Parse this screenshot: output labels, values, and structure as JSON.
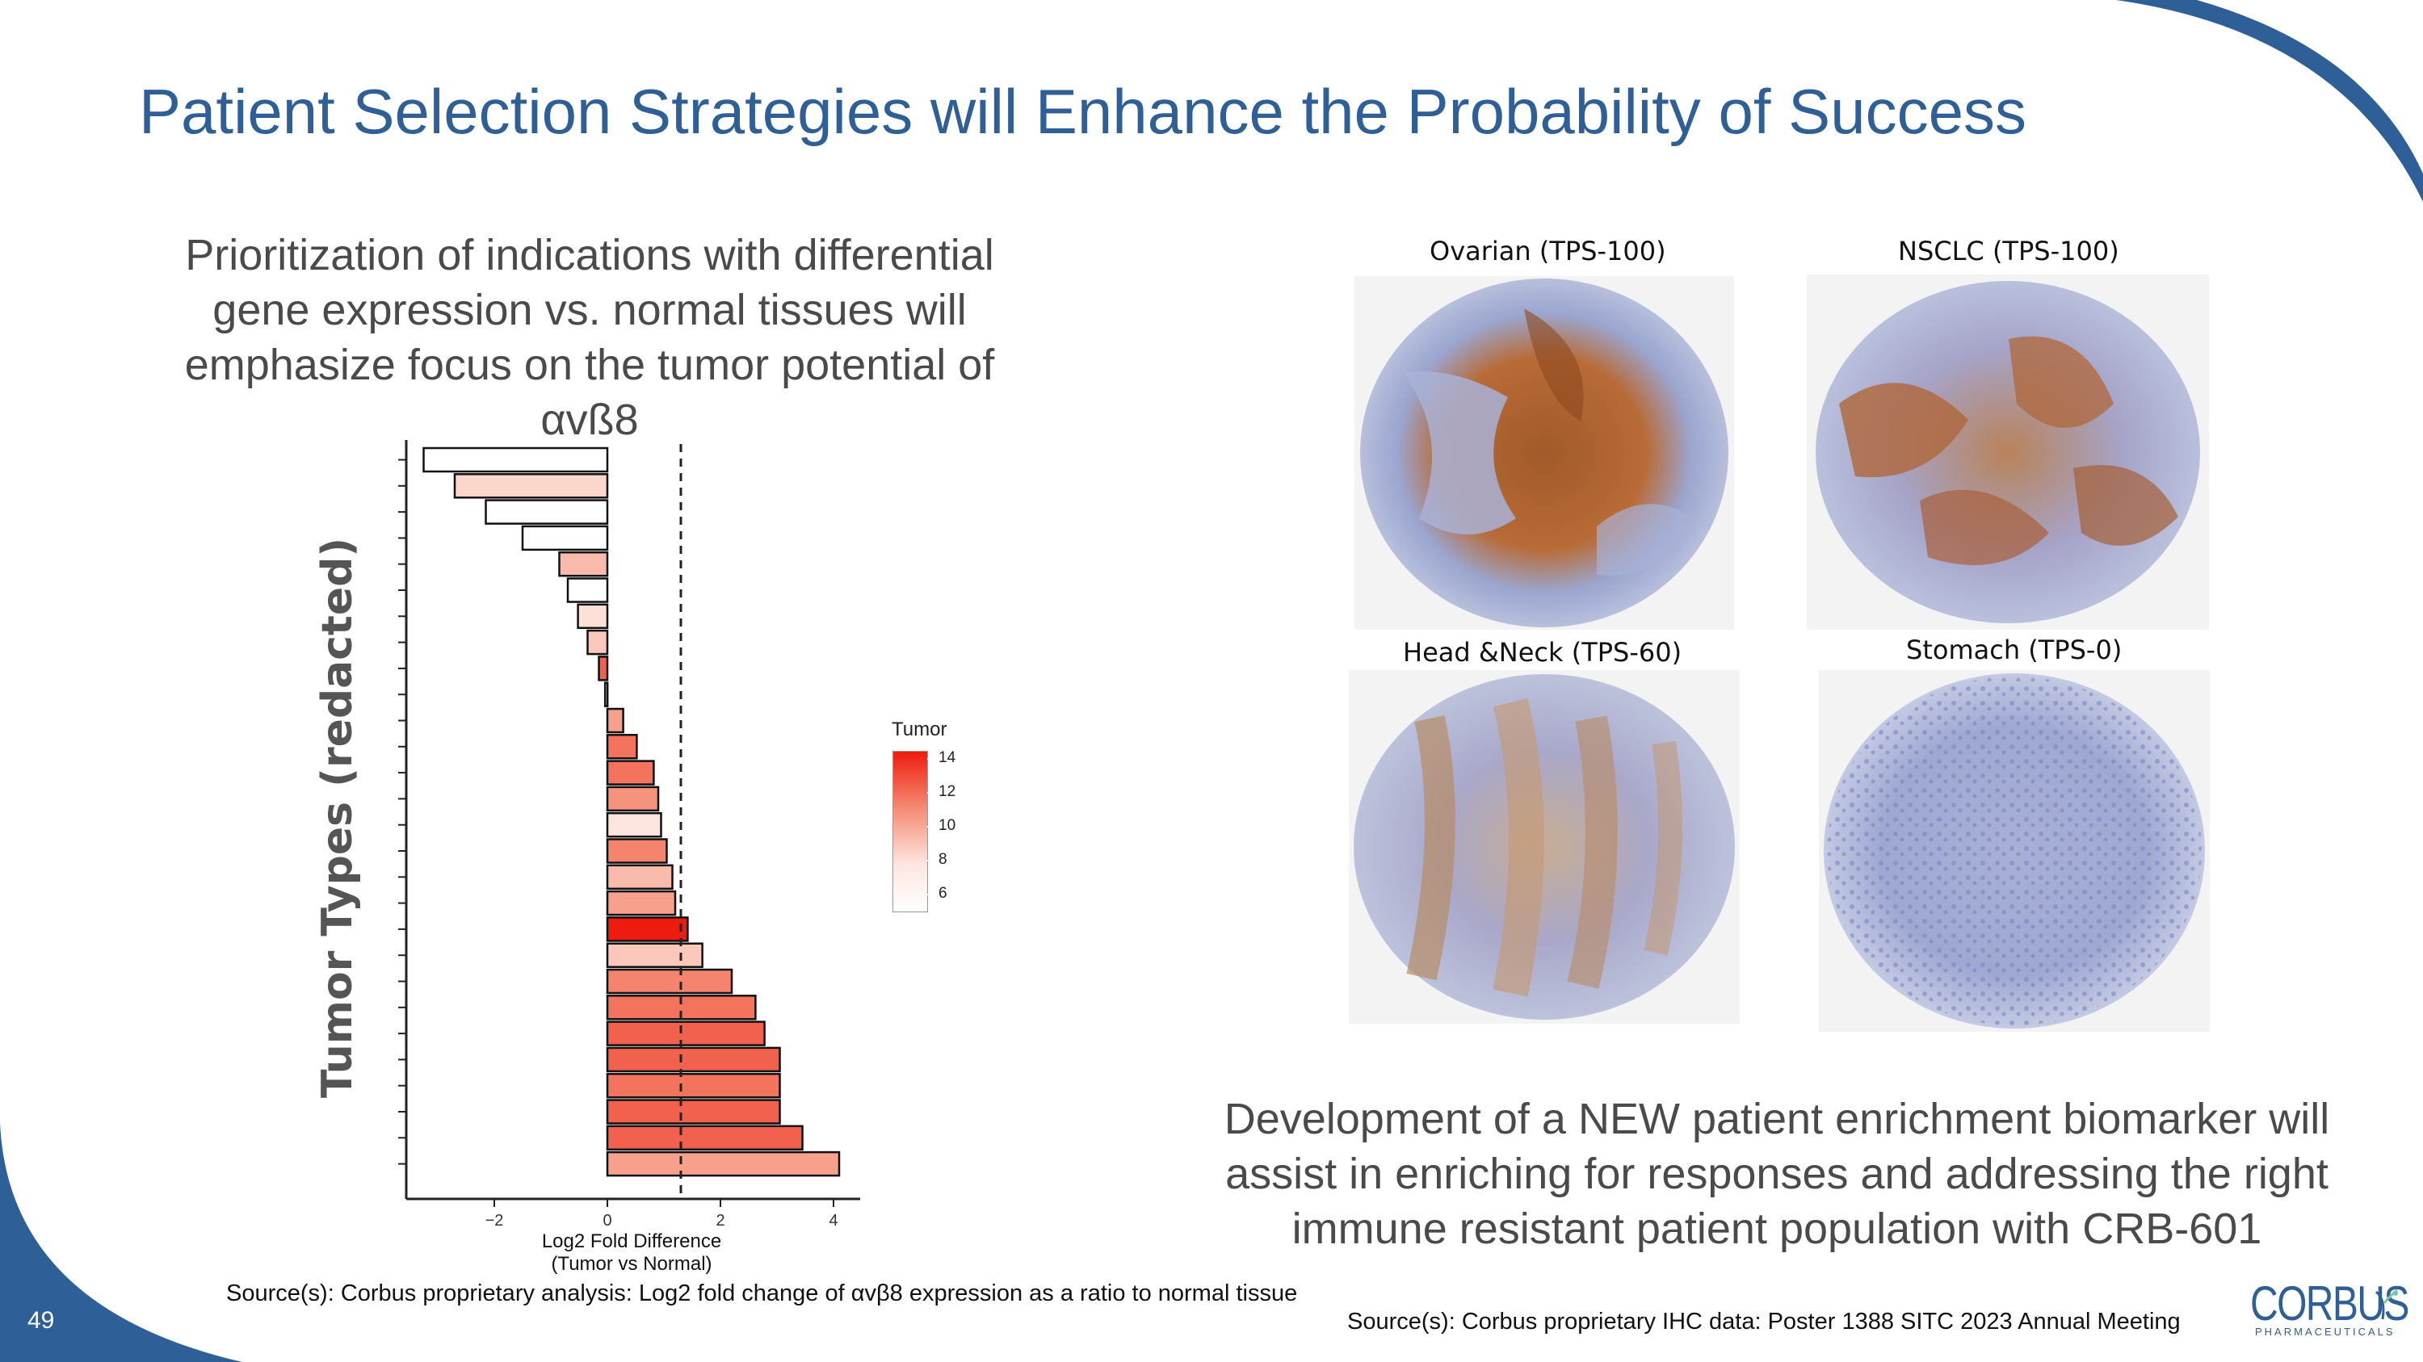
{
  "slide": {
    "title": "Patient Selection Strategies will Enhance the Probability of Success",
    "page_number": "49"
  },
  "left": {
    "heading": "Prioritization of indications with differential gene expression vs. normal tissues will emphasize focus on the tumor potential of αvß8",
    "y_axis_label": "Tumor Types (redacted)"
  },
  "chart_data": {
    "type": "bar",
    "orientation": "horizontal",
    "xlabel": "Log2 Fold Difference\n(Tumor vs Normal)",
    "xlabel_line1": "Log2 Fold Difference",
    "xlabel_line2": "(Tumor vs Normal)",
    "ylabel": "Tumor Types (redacted)",
    "xlim": [
      -3.7,
      4.5
    ],
    "xticks": [
      -2,
      0,
      2,
      4
    ],
    "xtick_labels": [
      "−2",
      "0",
      "2",
      "4"
    ],
    "reference_line_x": 1.3,
    "legend_title": "Tumor",
    "legend_ticks": [
      "14",
      "12",
      "10",
      "8",
      "6"
    ],
    "color_range": [
      5,
      14.5
    ],
    "values": [
      -3.25,
      -2.7,
      -2.15,
      -1.5,
      -0.85,
      -0.7,
      -0.52,
      -0.35,
      -0.15,
      -0.04,
      0.28,
      0.52,
      0.82,
      0.9,
      0.95,
      1.05,
      1.15,
      1.2,
      1.42,
      1.68,
      2.2,
      2.62,
      2.78,
      3.05,
      3.05,
      3.05,
      3.45,
      4.1
    ],
    "tumor_color_values": [
      5.0,
      8.5,
      5.0,
      5.0,
      9.5,
      5.0,
      8.0,
      9.0,
      12.5,
      6.0,
      10.5,
      12.0,
      12.0,
      11.0,
      7.5,
      11.5,
      9.5,
      10.5,
      14.5,
      9.0,
      11.5,
      12.0,
      12.5,
      12.5,
      12.0,
      12.5,
      12.5,
      10.5
    ]
  },
  "ihc": {
    "panels": [
      {
        "label": "Ovarian (TPS-100)",
        "stain": "heavy"
      },
      {
        "label": "NSCLC (TPS-100)",
        "stain": "medium"
      },
      {
        "label": "Head &Neck (TPS-60)",
        "stain": "light"
      },
      {
        "label": "Stomach (TPS-0)",
        "stain": "none"
      }
    ]
  },
  "right": {
    "text": "Development of a NEW patient enrichment biomarker will assist in enriching for responses and addressing the right immune resistant patient population with CRB-601"
  },
  "sources": {
    "left": "Source(s): Corbus proprietary analysis: Log2 fold change of αvβ8 expression as a ratio to normal tissue",
    "right": "Source(s): Corbus proprietary IHC data: Poster 1388 SITC 2023 Annual Meeting"
  },
  "logo": {
    "word": "CORBUS",
    "sub": "PHARMACEUTICALS"
  },
  "colors": {
    "title_blue": "#2f5f97",
    "accent_blue": "#2f5f97",
    "bar_red": "#ee1c0e",
    "text_gray": "#4a4a4a"
  }
}
